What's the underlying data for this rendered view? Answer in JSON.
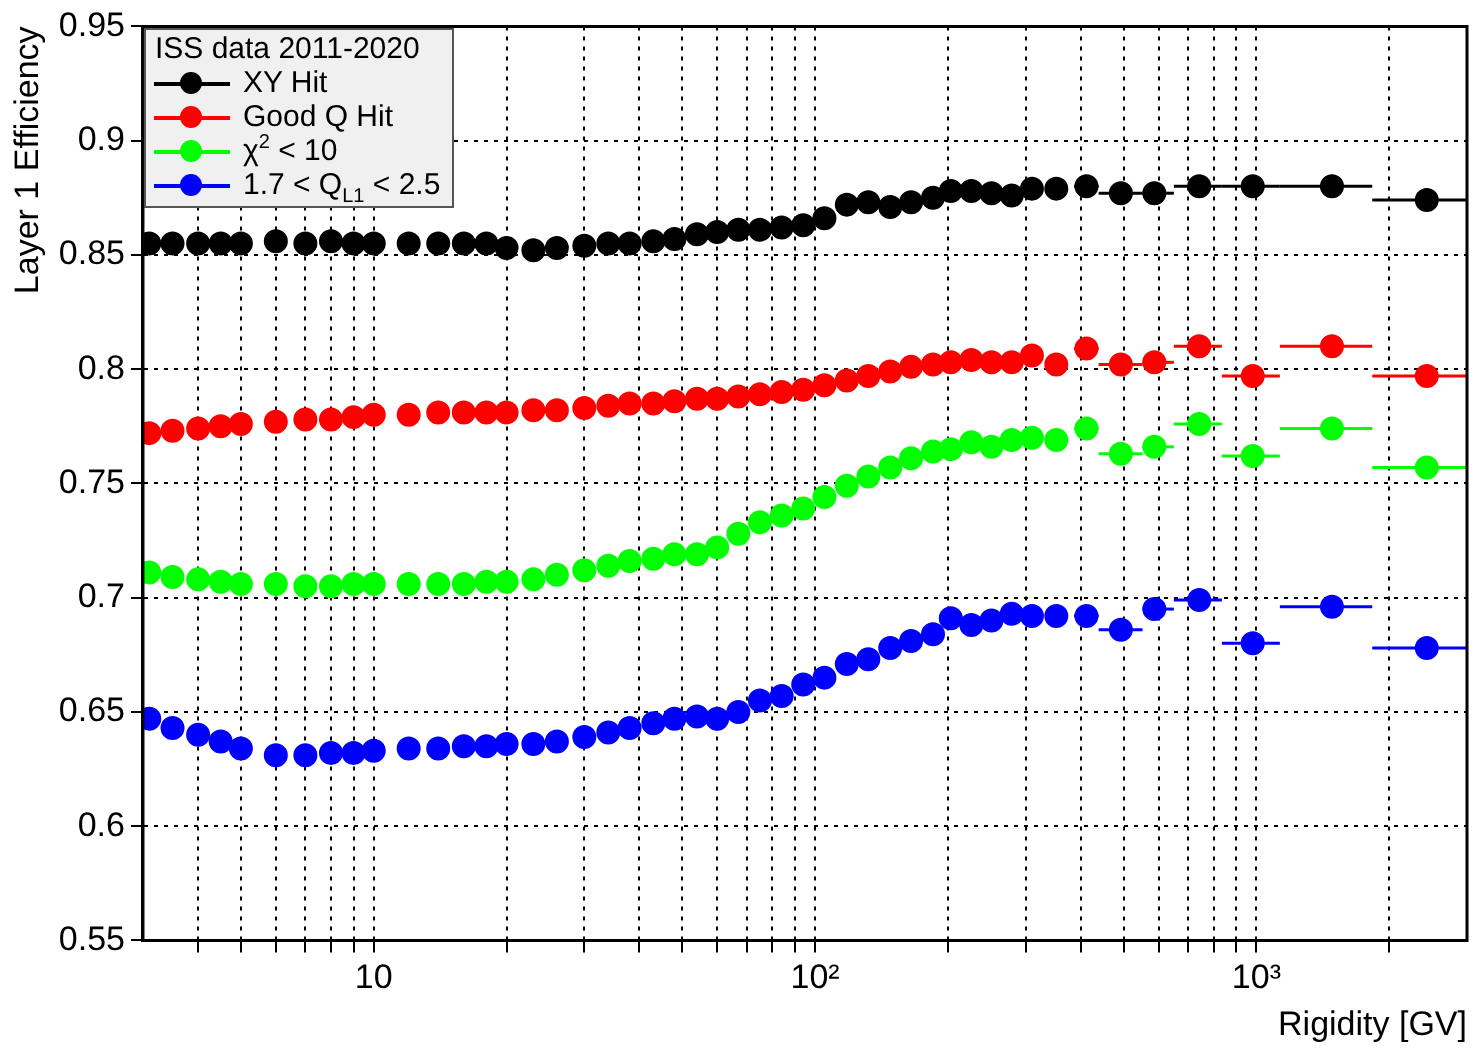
{
  "chart_data": {
    "type": "scatter",
    "xlabel": "Rigidity [GV]",
    "ylabel": "Layer 1 Efficiency",
    "legend_title": "ISS data 2011-2020",
    "legend": "top left",
    "grid": true,
    "log": "x",
    "marker": "circle",
    "xlim": [
      3,
      3000
    ],
    "ylim": [
      0.55,
      0.95
    ],
    "xticks": [
      {
        "value": 4,
        "label": null
      },
      {
        "value": 5,
        "label": null
      },
      {
        "value": 6,
        "label": null
      },
      {
        "value": 7,
        "label": null
      },
      {
        "value": 8,
        "label": null
      },
      {
        "value": 9,
        "label": null
      },
      10,
      {
        "value": 20,
        "label": null
      },
      {
        "value": 30,
        "label": null
      },
      {
        "value": 40,
        "label": null
      },
      {
        "value": 50,
        "label": null
      },
      {
        "value": 60,
        "label": null
      },
      {
        "value": 70,
        "label": null
      },
      {
        "value": 80,
        "label": null
      },
      {
        "value": 90,
        "label": null
      },
      {
        "value": 100,
        "label": "10²"
      },
      {
        "value": 200,
        "label": null
      },
      {
        "value": 300,
        "label": null
      },
      {
        "value": 400,
        "label": null
      },
      {
        "value": 500,
        "label": null
      },
      {
        "value": 600,
        "label": null
      },
      {
        "value": 700,
        "label": null
      },
      {
        "value": 800,
        "label": null
      },
      {
        "value": 900,
        "label": null
      },
      {
        "value": 1000,
        "label": "10³"
      },
      {
        "value": 2000,
        "label": null
      }
    ],
    "yticks": [
      0.55,
      0.6,
      0.65,
      0.7,
      0.75,
      0.8,
      0.85,
      0.9,
      0.95
    ],
    "x": [
      3.1,
      3.5,
      4,
      4.5,
      5,
      6,
      7,
      8,
      9,
      10,
      12,
      14,
      16,
      18,
      20,
      23,
      26,
      30,
      34,
      38,
      43,
      48,
      54,
      60,
      67,
      75,
      84,
      94,
      105,
      118,
      132,
      148,
      165,
      185,
      203,
      226,
      251,
      279,
      310,
      352,
      412,
      493,
      587,
      742,
      981,
      1483,
      2432
    ],
    "series": [
      {
        "name": "XY Hit",
        "color": "#000000",
        "values": [
          0.855,
          0.855,
          0.855,
          0.855,
          0.855,
          0.856,
          0.855,
          0.856,
          0.855,
          0.855,
          0.855,
          0.855,
          0.855,
          0.855,
          0.853,
          0.852,
          0.853,
          0.854,
          0.855,
          0.855,
          0.856,
          0.857,
          0.859,
          0.86,
          0.861,
          0.861,
          0.862,
          0.863,
          0.866,
          0.872,
          0.873,
          0.871,
          0.873,
          0.875,
          0.878,
          0.878,
          0.877,
          0.876,
          0.879,
          0.879,
          0.88,
          0.877,
          0.877,
          0.88,
          0.88,
          0.88,
          0.874
        ],
        "xerrors": [
          null,
          null,
          null,
          null,
          null,
          null,
          null,
          null,
          null,
          null,
          null,
          null,
          null,
          null,
          null,
          null,
          null,
          null,
          null,
          null,
          null,
          null,
          null,
          null,
          null,
          null,
          null,
          null,
          null,
          null,
          null,
          null,
          null,
          null,
          null,
          null,
          null,
          null,
          null,
          null,
          [
            386,
            439
          ],
          [
            439,
            552
          ],
          [
            552,
            650
          ],
          [
            650,
            835
          ],
          [
            835,
            1130
          ],
          [
            1130,
            1830
          ],
          [
            1830,
            3000
          ]
        ]
      },
      {
        "name": "Good Q Hit",
        "color": "#ff0000",
        "values": [
          0.772,
          0.773,
          0.774,
          0.775,
          0.776,
          0.777,
          0.778,
          0.778,
          0.779,
          0.78,
          0.78,
          0.781,
          0.781,
          0.781,
          0.781,
          0.782,
          0.782,
          0.783,
          0.784,
          0.785,
          0.785,
          0.786,
          0.787,
          0.787,
          0.788,
          0.789,
          0.79,
          0.791,
          0.793,
          0.795,
          0.797,
          0.799,
          0.801,
          0.802,
          0.803,
          0.804,
          0.803,
          0.803,
          0.806,
          0.802,
          0.809,
          0.802,
          0.803,
          0.81,
          0.797,
          0.81,
          0.797
        ],
        "xerrors": [
          null,
          null,
          null,
          null,
          null,
          null,
          null,
          null,
          null,
          null,
          null,
          null,
          null,
          null,
          null,
          null,
          null,
          null,
          null,
          null,
          null,
          null,
          null,
          null,
          null,
          null,
          null,
          null,
          null,
          null,
          null,
          null,
          null,
          null,
          null,
          null,
          null,
          null,
          null,
          null,
          [
            386,
            439
          ],
          [
            439,
            552
          ],
          [
            552,
            650
          ],
          [
            650,
            835
          ],
          [
            835,
            1130
          ],
          [
            1130,
            1830
          ],
          [
            1830,
            3000
          ]
        ]
      },
      {
        "name": "χ$^{2}$ < 10",
        "color": "#00ff00",
        "values": [
          0.711,
          0.709,
          0.708,
          0.707,
          0.706,
          0.706,
          0.705,
          0.705,
          0.706,
          0.706,
          0.706,
          0.706,
          0.706,
          0.707,
          0.707,
          0.708,
          0.71,
          0.712,
          0.714,
          0.716,
          0.717,
          0.719,
          0.719,
          0.722,
          0.728,
          0.733,
          0.736,
          0.739,
          0.744,
          0.749,
          0.753,
          0.757,
          0.761,
          0.764,
          0.765,
          0.768,
          0.766,
          0.769,
          0.77,
          0.769,
          0.774,
          0.763,
          0.766,
          0.776,
          0.762,
          0.774,
          0.757
        ],
        "xerrors": [
          null,
          null,
          null,
          null,
          null,
          null,
          null,
          null,
          null,
          null,
          null,
          null,
          null,
          null,
          null,
          null,
          null,
          null,
          null,
          null,
          null,
          null,
          null,
          null,
          null,
          null,
          null,
          null,
          null,
          null,
          null,
          null,
          null,
          null,
          null,
          null,
          null,
          null,
          null,
          null,
          [
            386,
            439
          ],
          [
            439,
            552
          ],
          [
            552,
            650
          ],
          [
            650,
            835
          ],
          [
            835,
            1130
          ],
          [
            1130,
            1830
          ],
          [
            1830,
            3000
          ]
        ]
      },
      {
        "name": "1.7 < Q$_{L1}$ < 2.5",
        "color": "#0000ff",
        "values": [
          0.647,
          0.643,
          0.64,
          0.637,
          0.634,
          0.631,
          0.631,
          0.632,
          0.632,
          0.633,
          0.634,
          0.634,
          0.635,
          0.635,
          0.636,
          0.636,
          0.637,
          0.639,
          0.641,
          0.643,
          0.645,
          0.647,
          0.648,
          0.647,
          0.65,
          0.655,
          0.657,
          0.662,
          0.665,
          0.671,
          0.673,
          0.678,
          0.681,
          0.684,
          0.691,
          0.688,
          0.69,
          0.693,
          0.692,
          0.692,
          0.692,
          0.686,
          0.695,
          0.699,
          0.68,
          0.696,
          0.678
        ],
        "xerrors": [
          null,
          null,
          null,
          null,
          null,
          null,
          null,
          null,
          null,
          null,
          null,
          null,
          null,
          null,
          null,
          null,
          null,
          null,
          null,
          null,
          null,
          null,
          null,
          null,
          null,
          null,
          null,
          null,
          null,
          null,
          null,
          null,
          null,
          null,
          null,
          null,
          null,
          null,
          null,
          null,
          [
            386,
            439
          ],
          [
            439,
            552
          ],
          [
            552,
            650
          ],
          [
            650,
            835
          ],
          [
            835,
            1130
          ],
          [
            1130,
            1830
          ],
          [
            1830,
            3000
          ]
        ]
      }
    ]
  }
}
